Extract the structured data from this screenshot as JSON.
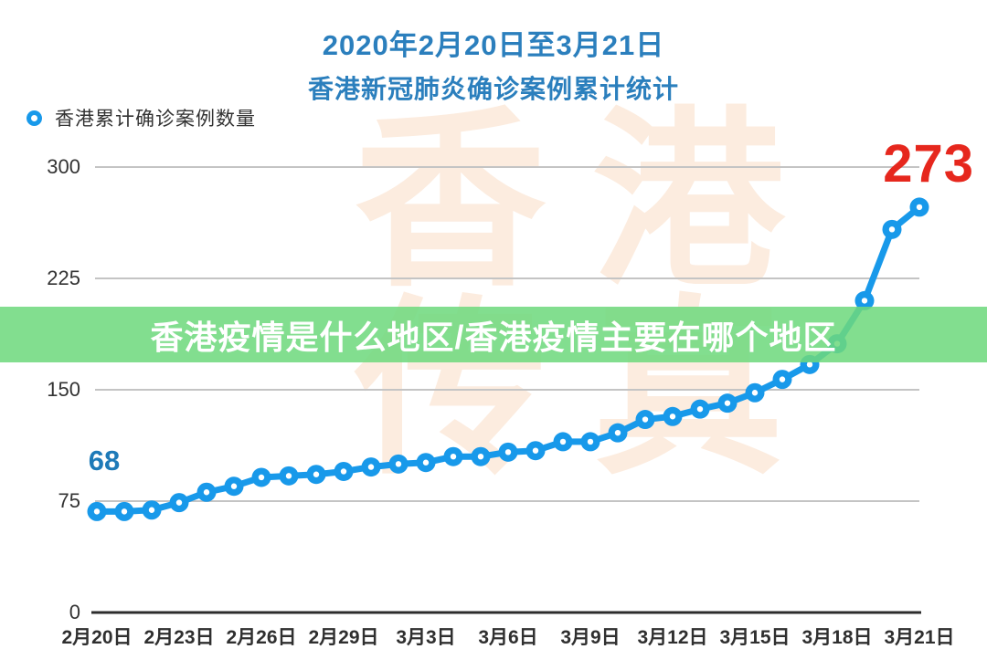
{
  "page": {
    "background": "#ffffff"
  },
  "header": {
    "title_line1": "2020年2月20日至3月21日",
    "title_line2": "香港新冠肺炎确诊案例累计统计",
    "title_color": "#2b7fbd"
  },
  "legend": {
    "label": "香港累计确诊案例数量",
    "marker_color": "#1899ea"
  },
  "overlay_banner": {
    "text": "香港疫情是什么地区/香港疫情主要在哪个地区",
    "background": "#6ed87d",
    "text_color": "#ffffff"
  },
  "watermark": {
    "line1": "香港",
    "line2": "传真",
    "color": "#fcecdf"
  },
  "annotations": {
    "first_value_label": "68",
    "first_value_color": "#1e7ab8",
    "last_value_label": "273",
    "last_value_color": "#e6271d"
  },
  "chart_data": {
    "type": "line",
    "title": "2020年2月20日至3月21日 香港新冠肺炎确诊案例累计统计",
    "series_name": "香港累计确诊案例数量",
    "x": [
      "2月20日",
      "2月21日",
      "2月22日",
      "2月23日",
      "2月24日",
      "2月25日",
      "2月26日",
      "2月27日",
      "2月28日",
      "2月29日",
      "3月1日",
      "3月2日",
      "3月3日",
      "3月4日",
      "3月5日",
      "3月6日",
      "3月7日",
      "3月8日",
      "3月9日",
      "3月10日",
      "3月11日",
      "3月12日",
      "3月13日",
      "3月14日",
      "3月15日",
      "3月16日",
      "3月17日",
      "3月18日",
      "3月19日",
      "3月20日",
      "3月21日"
    ],
    "values": [
      68,
      68,
      69,
      74,
      81,
      85,
      91,
      92,
      93,
      95,
      98,
      100,
      101,
      105,
      105,
      108,
      109,
      115,
      115,
      121,
      130,
      132,
      137,
      141,
      148,
      157,
      167,
      181,
      210,
      258,
      273
    ],
    "x_tick_labels": [
      "2月20日",
      "2月23日",
      "2月26日",
      "2月29日",
      "3月3日",
      "3月6日",
      "3月9日",
      "3月12日",
      "3月15日",
      "3月18日",
      "3月21日"
    ],
    "x_tick_every": 3,
    "y_ticks": [
      0,
      75,
      150,
      225,
      300
    ],
    "ylim": [
      0,
      300
    ],
    "grid": true,
    "line_color": "#1899ea",
    "marker_center_color": "#ffffff",
    "grid_color": "#c4c4c4",
    "axis_color": "#2d2d2d",
    "legend_position": "top-left"
  }
}
